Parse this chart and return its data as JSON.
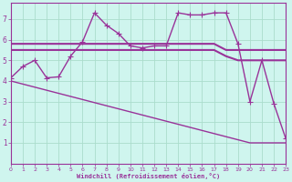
{
  "xlabel": "Windchill (Refroidissement éolien,°C)",
  "background_color": "#cff5ee",
  "grid_color": "#aaddcc",
  "line_color": "#993399",
  "xlim": [
    0,
    23
  ],
  "ylim": [
    0,
    7.8
  ],
  "xticks": [
    0,
    1,
    2,
    3,
    4,
    5,
    6,
    7,
    8,
    9,
    10,
    11,
    12,
    13,
    14,
    15,
    16,
    17,
    18,
    19,
    20,
    21,
    22,
    23
  ],
  "yticks": [
    1,
    2,
    3,
    4,
    5,
    6,
    7
  ],
  "series": [
    {
      "x": [
        0,
        1,
        2,
        3,
        4,
        5,
        6,
        7,
        8,
        9,
        10,
        11,
        12,
        13,
        14,
        15,
        16,
        17,
        18,
        19,
        20,
        21,
        22,
        23
      ],
      "y": [
        4.15,
        4.7,
        5.0,
        4.15,
        4.2,
        5.2,
        5.9,
        7.3,
        6.7,
        6.3,
        5.7,
        5.6,
        5.7,
        5.7,
        7.3,
        7.2,
        7.2,
        7.3,
        7.3,
        5.8,
        3.0,
        5.0,
        2.9,
        1.2
      ],
      "marker": "+",
      "lw": 1.0,
      "ms": 4
    },
    {
      "x": [
        0,
        1,
        2,
        3,
        4,
        5,
        6,
        7,
        8,
        9,
        10,
        11,
        12,
        13,
        14,
        15,
        16,
        17,
        18,
        19,
        20,
        21,
        22,
        23
      ],
      "y": [
        5.8,
        5.8,
        5.8,
        5.8,
        5.8,
        5.8,
        5.8,
        5.8,
        5.8,
        5.8,
        5.8,
        5.8,
        5.8,
        5.8,
        5.8,
        5.8,
        5.8,
        5.8,
        5.5,
        5.5,
        5.5,
        5.5,
        5.5,
        5.5
      ],
      "marker": null,
      "lw": 1.5,
      "ms": 0
    },
    {
      "x": [
        0,
        1,
        2,
        3,
        4,
        5,
        6,
        7,
        8,
        9,
        10,
        11,
        12,
        13,
        14,
        15,
        16,
        17,
        18,
        19,
        20,
        21,
        22,
        23
      ],
      "y": [
        5.5,
        5.5,
        5.5,
        5.5,
        5.5,
        5.5,
        5.5,
        5.5,
        5.5,
        5.5,
        5.5,
        5.5,
        5.5,
        5.5,
        5.5,
        5.5,
        5.5,
        5.5,
        5.2,
        5.0,
        5.0,
        5.0,
        5.0,
        5.0
      ],
      "marker": null,
      "lw": 1.5,
      "ms": 0
    },
    {
      "x": [
        0,
        1,
        2,
        3,
        4,
        5,
        6,
        7,
        8,
        9,
        10,
        11,
        12,
        13,
        14,
        15,
        16,
        17,
        18,
        19,
        20,
        21,
        22,
        23
      ],
      "y": [
        4.0,
        3.85,
        3.7,
        3.55,
        3.4,
        3.25,
        3.1,
        2.95,
        2.8,
        2.65,
        2.5,
        2.35,
        2.2,
        2.05,
        1.9,
        1.75,
        1.6,
        1.45,
        1.3,
        1.15,
        1.0,
        1.0,
        1.0,
        1.0
      ],
      "marker": null,
      "lw": 1.0,
      "ms": 0
    }
  ],
  "figsize": [
    3.2,
    2.0
  ],
  "dpi": 100,
  "tick_fontsize_x": 4.5,
  "tick_fontsize_y": 5.5,
  "xlabel_fontsize": 5.0
}
